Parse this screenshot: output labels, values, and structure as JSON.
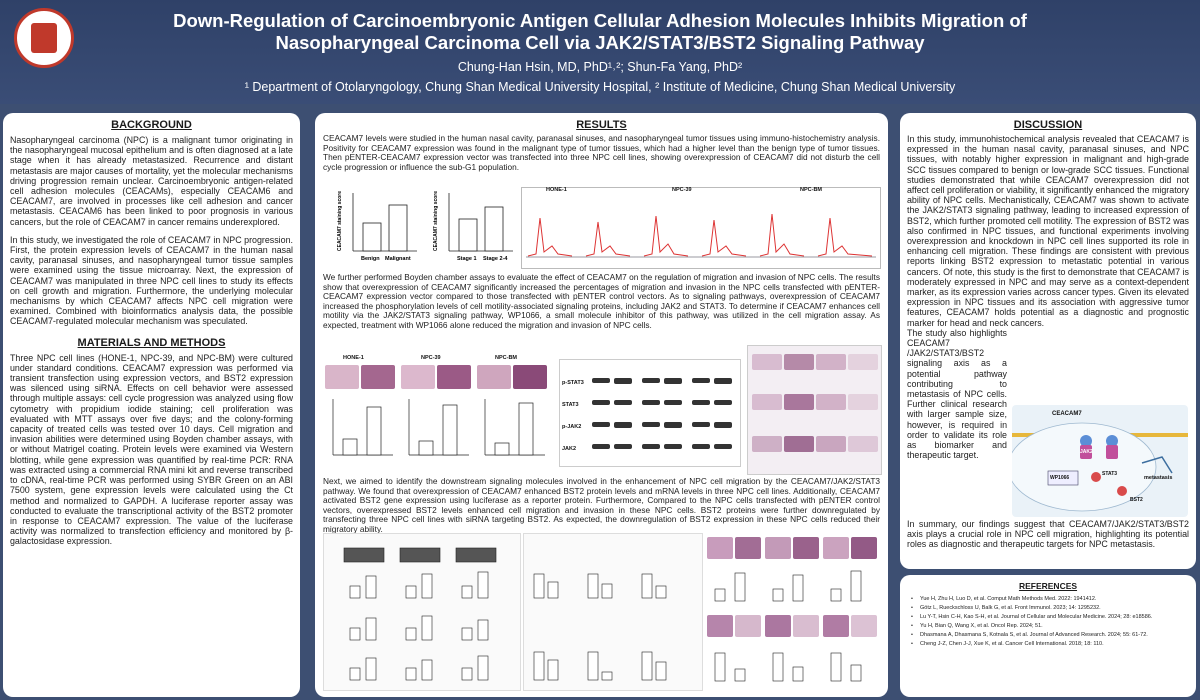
{
  "header": {
    "title_line1": "Down-Regulation of Carcinoembryonic Antigen Cellular Adhesion Molecules Inhibits Migration of",
    "title_line2": "Nasopharyngeal Carcinoma Cell via JAK2/STAT3/BST2 Signaling Pathway",
    "authors": "Chung-Han Hsin, MD, PhD¹˒²; Shun-Fa Yang, PhD²",
    "affiliations": "¹ Department of Otolaryngology, Chung Shan Medical University Hospital, ² Institute of Medicine, Chung Shan Medical University"
  },
  "background": {
    "heading": "BACKGROUND",
    "p1": "Nasopharyngeal carcinoma (NPC) is a malignant tumor originating in the nasopharyngeal mucosal epithelium and is often diagnosed at a late stage when it has already metastasized. Recurrence and distant metastasis are major causes of mortality, yet the molecular mechanisms driving progression remain unclear. Carcinoembryonic antigen-related cell adhesion molecules (CEACAMs), especially CEACAM6 and CEACAM7, are involved in processes like cell adhesion and cancer metastasis. CEACAM6 has been linked to poor prognosis in various cancers, but the role of CEACAM7 in cancer remains underexplored.",
    "p2": "In this study, we investigated the role of CEACAM7 in NPC progression. First, the protein expression levels of CEACAM7 in the human nasal cavity, paranasal sinuses, and nasopharyngeal tumor tissue samples were examined using the tissue microarray. Next, the expression of CEACAM7 was manipulated in three NPC cell lines to study its effects on cell growth and migration. Furthermore, the underlying molecular mechanisms by which CEACAM7 affects NPC cell migration were examined. Combined with bioinformatics analysis data, the possible CEACAM7-regulated molecular mechanism was speculated."
  },
  "methods": {
    "heading": "MATERIALS AND METHODS",
    "p1": "Three NPC cell lines (HONE-1, NPC-39, and NPC-BM) were cultured under standard conditions. CEACAM7 expression was performed via transient transfection using expression vectors, and BST2 expression was silenced using siRNA. Effects on cell behavior were assessed through multiple assays: cell cycle progression was analyzed using flow cytometry with propidium iodide staining; cell proliferation was evaluated with MTT assays over five days; and the colony-forming capacity of treated cells was tested over 10 days. Cell migration and invasion abilities were determined using Boyden chamber assays, with or without Matrigel coating. Protein levels were examined via Western blotting, while gene expression was quantified by real-time PCR: RNA was extracted using a commercial RNA mini kit and reverse transcribed to cDNA, real-time PCR was performed using SYBR Green on an ABI 7500 system, gene expression levels were calculated using the Ct method and normalized to GAPDH. A luciferase reporter assay was conducted to evaluate the transcriptional activity of the BST2 promoter in response to CEACAM7 expression. The value of the luciferase activity was normalized to transfection efficiency and monitored by β-galactosidase expression."
  },
  "results": {
    "heading": "RESULTS",
    "p1": "CEACAM7 levels were studied in the human nasal cavity, paranasal sinuses, and nasopharyngeal tumor tissues using immuno-histochemistry analysis. Positivity for CEACAM7 expression was found in the malignant type of tumor tissues, which had a higher level than the benign type of tumor tissues. Then pENTER-CEACAM7 expression vector was transfected into three NPC cell lines, showing overexpression of CEACAM7 did not disturb the cell cycle progression or influence the sub-G1 population.",
    "p2": "We further performed Boyden chamber assays to evaluate the effect of CEACAM7 on the regulation of migration and invasion of NPC cells. The results show that overexpression of CEACAM7 significantly increased the percentages of migration and invasion in the NPC cells transfected with pENTER-CEACAM7 expression vector compared to those transfected with pENTER control vectors. As to signaling pathways, overexpression of CEACAM7 increased the phosphorylation levels of cell motility-associated signaling proteins, including JAK2 and STAT3. To determine if CEACAM7 enhances cell motility via the JAK2/STAT3 signaling pathway, WP1066, a small molecule inhibitor of this pathway, was utilized in the cell migration assay. As expected, treatment with WP1066 alone reduced the migration and invasion of NPC cells.",
    "p3": "Next, we aimed to identify the downstream signaling molecules involved in the enhancement of NPC cell migration by the CEACAM7/JAK2/STAT3 pathway. We found that overexpression of CEACAM7 enhanced BST2 protein levels and mRNA levels in three NPC cell lines. Additionally, CEACAM7 activated BST2 gene expression using luciferase as a reporter protein. Furthermore, Compared to the NPC cells transfected with pENTER control vectors, overexpressed BST2 levels enhanced cell migration and invasion in these NPC cells. BST2 proteins were further downregulated by transfecting three NPC cell lines with siRNA targeting BST2. As expected, the downregulation of BST2 expression in these NPC cells reduced their migratory ability.",
    "chart1_ylabel": "CEACAM7 staining score",
    "chart1_x": [
      "Benign",
      "Malignant"
    ],
    "chart2_ylabel": "CEACAM7 staining score",
    "chart2_x": [
      "Stage 1",
      "Stage 2-4"
    ],
    "cell_lines": [
      "HONE-1",
      "NPC-39",
      "NPC-BM"
    ],
    "vector_labels": [
      "pENTER",
      "CEACAM7"
    ],
    "blot_labels": [
      "p-STAT3",
      "STAT3",
      "p-JAK2",
      "JAK2"
    ]
  },
  "discussion": {
    "heading": "DISCUSSION",
    "p1": "In this study, immunohistochemical analysis revealed that CEACAM7 is expressed in the human nasal cavity, paranasal sinuses, and NPC tissues, with notably higher expression in malignant and high-grade SCC tissues compared to benign or low-grade SCC tissues. Functional studies demonstrated that while CEACAM7 overexpression did not affect cell proliferation or viability, it significantly enhanced the migratory ability of NPC cells. Mechanistically, CEACAM7 was shown to activate the JAK2/STAT3 signaling pathway, leading to increased expression of BST2, which further promoted cell motility. The expression of BST2 was also confirmed in NPC tissues, and functional experiments involving overexpression and knockdown in NPC cell lines supported its role in enhancing cell migration. These findings are consistent with previous reports linking BST2 expression to metastatic potential in various cancers. Of note, this study is the first to demonstrate that CEACAM7 is moderately expressed in NPC and may serve as a context-dependent marker, as its expression varies across cancer types. Given its elevated expression in NPC tissues and its association with aggressive tumor features, CEACAM7 holds potential as a diagnostic and prognostic marker for head and neck cancers.",
    "p2": "The study also highlights CEACAM7 /JAK2/STAT3/BST2 signaling axis as a potential pathway contributing to metastasis of NPC cells. Further clinical research with larger sample size, however, is required in order to validate its role as biomarker and therapeutic target.",
    "p3": "In summary, our findings suggest that CEACAM7/JAK2/STAT3/BST2 axis plays a crucial role in NPC cell migration, highlighting its potential roles as diagnostic and therapeutic targets for NPC metastasis.",
    "diagram_labels": [
      "CEACAM7",
      "JAK2",
      "STAT3",
      "WP1066",
      "BST2",
      "metastasis"
    ]
  },
  "references": {
    "heading": "REFERENCES",
    "items": [
      "Yue H, Zhu H, Luo D, et al. Comput Math Methods Med. 2022: 1941412.",
      "Götz L, Rueckschloss U, Balk G, et al. Front Immunol. 2023; 14: 1295232.",
      "Lu Y-T, Hsin C-H, Kao S-H, et al. Journal of Cellular and Molecular Medicine. 2024; 28: e18586.",
      "Yu H, Bian Q, Wang X, et al. Oncol Rep. 2024; 51.",
      "Dhasmana A, Dhasmana S, Kotnala S, et al. Journal of Advanced Research. 2024; 55: 61-72.",
      "Cheng J-Z, Chen J-J, Xue K, et al. Cancer Cell International. 2018; 18: 110."
    ]
  }
}
